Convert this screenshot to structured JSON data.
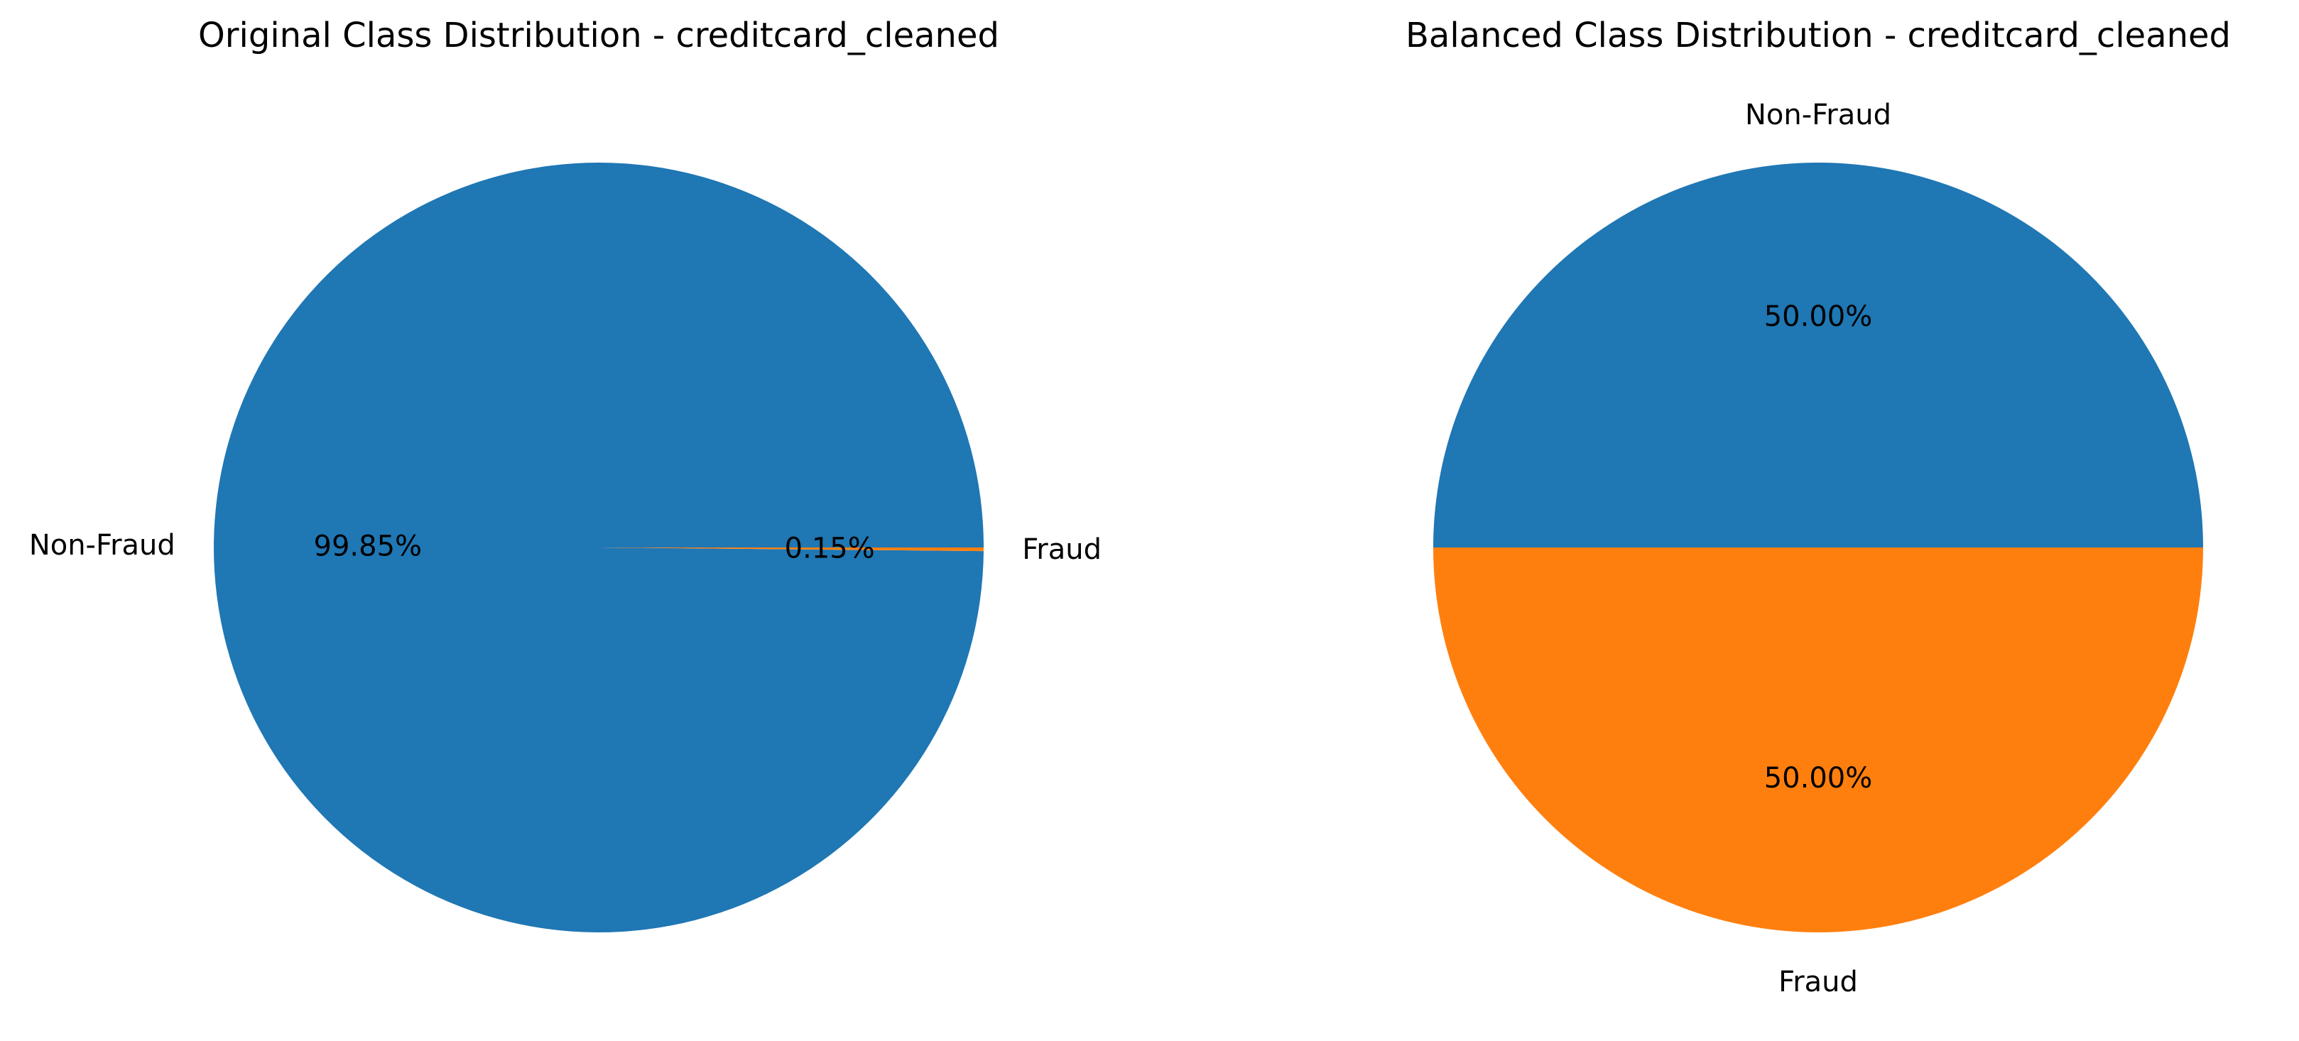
{
  "chart_data": [
    {
      "type": "pie",
      "title": "Original Class Distribution - creditcard_cleaned",
      "labels": [
        "Non-Fraud",
        "Fraud"
      ],
      "values": [
        99.85,
        0.15
      ],
      "percent_labels": [
        "99.85%",
        "0.15%"
      ],
      "colors": [
        "#1f77b4",
        "#ff7f0e"
      ],
      "start_angle_deg": 0,
      "direction": "counterclockwise",
      "legend": "none"
    },
    {
      "type": "pie",
      "title": "Balanced Class Distribution - creditcard_cleaned",
      "labels": [
        "Non-Fraud",
        "Fraud"
      ],
      "values": [
        50.0,
        50.0
      ],
      "percent_labels": [
        "50.00%",
        "50.00%"
      ],
      "colors": [
        "#1f77b4",
        "#ff7f0e"
      ],
      "start_angle_deg": 0,
      "direction": "counterclockwise",
      "legend": "none"
    }
  ]
}
